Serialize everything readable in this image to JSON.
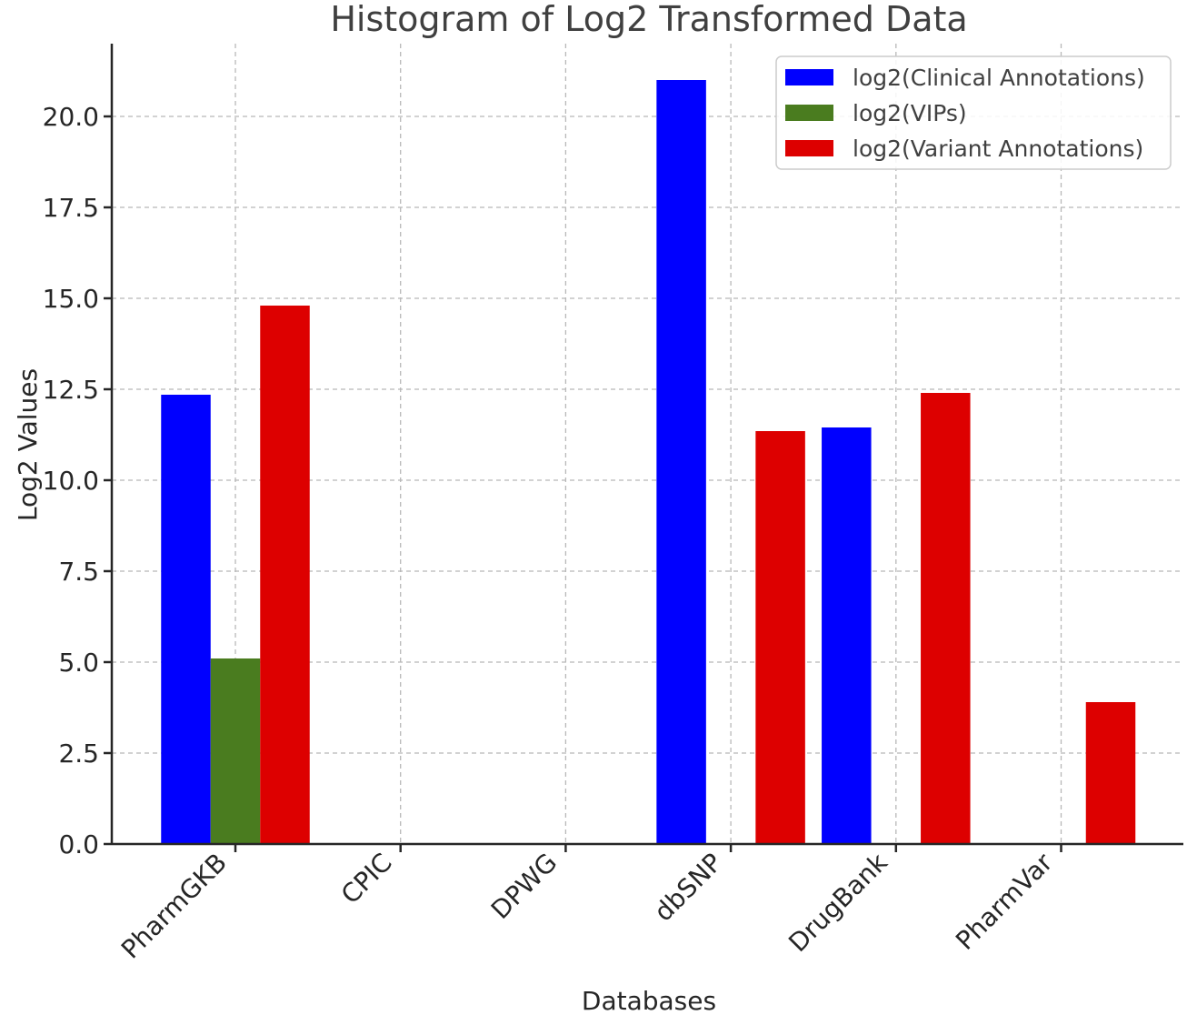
{
  "chart_data": {
    "type": "bar",
    "title": "Histogram of Log2 Transformed Data",
    "xlabel": "Databases",
    "ylabel": "Log2 Values",
    "categories": [
      "PharmGKB",
      "CPIC",
      "DPWG",
      "dbSNP",
      "DrugBank",
      "PharmVar"
    ],
    "ylim": [
      0,
      22
    ],
    "yticks": [
      "0.0",
      "2.5",
      "5.0",
      "7.5",
      "10.0",
      "12.5",
      "15.0",
      "17.5",
      "20.0"
    ],
    "grid": true,
    "legend_position": "top-right",
    "series": [
      {
        "name": "log2(Clinical Annotations)",
        "color": "#0000ff",
        "values": [
          12.35,
          null,
          null,
          21.0,
          11.45,
          null
        ]
      },
      {
        "name": "log2(VIPs)",
        "color": "#4a7c1f",
        "values": [
          5.1,
          null,
          null,
          null,
          null,
          null
        ]
      },
      {
        "name": "log2(Variant Annotations)",
        "color": "#dd0000",
        "values": [
          14.8,
          null,
          null,
          11.35,
          12.4,
          3.9
        ]
      }
    ]
  }
}
